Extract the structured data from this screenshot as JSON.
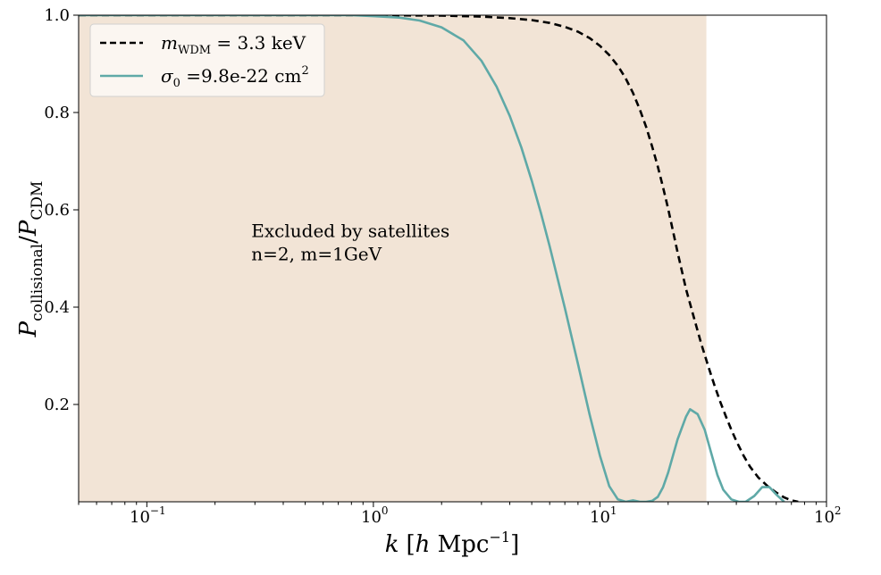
{
  "chart_data": {
    "type": "line",
    "xlabel": "k [h Mpc^-1]",
    "ylabel": "P_collisional / P_CDM",
    "xscale": "log",
    "xlim": [
      0.05,
      100
    ],
    "ylim": [
      0,
      1.0
    ],
    "xticks": [
      {
        "value": 0.1,
        "label": "10^-1"
      },
      {
        "value": 1,
        "label": "10^0"
      },
      {
        "value": 10,
        "label": "10^1"
      },
      {
        "value": 100,
        "label": "10^2"
      }
    ],
    "yticks": [
      {
        "value": 0.2,
        "label": "0.2"
      },
      {
        "value": 0.4,
        "label": "0.4"
      },
      {
        "value": 0.6,
        "label": "0.6"
      },
      {
        "value": 0.8,
        "label": "0.8"
      },
      {
        "value": 1.0,
        "label": "1.0"
      }
    ],
    "grid": false,
    "legend_position": "top-left",
    "excluded_region": {
      "x_range": [
        0.05,
        29.5
      ],
      "y_range": [
        0,
        1.0
      ],
      "color": "#f2e4d6",
      "label_lines": [
        "Excluded by satellites",
        "n=2, m=1GeV"
      ],
      "label_anchor": {
        "x": 0.3,
        "y": 0.55
      }
    },
    "series": [
      {
        "name": "m_WDM = 3.3 keV",
        "style": "dashed",
        "color": "#000000",
        "x": [
          0.05,
          1,
          2,
          3,
          4,
          5,
          6,
          7,
          8,
          9,
          10,
          11,
          12,
          13,
          14,
          15,
          16,
          17,
          18,
          19,
          20,
          22,
          24,
          26,
          28,
          30,
          32,
          34,
          36,
          38,
          40,
          43,
          46,
          50,
          55,
          60,
          65,
          70,
          75
        ],
        "y": [
          1.0,
          1.0,
          0.999,
          0.997,
          0.994,
          0.99,
          0.984,
          0.976,
          0.966,
          0.953,
          0.937,
          0.918,
          0.896,
          0.87,
          0.84,
          0.806,
          0.77,
          0.73,
          0.689,
          0.646,
          0.602,
          0.513,
          0.437,
          0.378,
          0.325,
          0.28,
          0.24,
          0.205,
          0.175,
          0.148,
          0.125,
          0.095,
          0.072,
          0.05,
          0.032,
          0.019,
          0.009,
          0.003,
          0.0
        ]
      },
      {
        "name": "sigma_0 = 9.8e-22 cm^2",
        "style": "solid",
        "color": "#5fa9a7",
        "x": [
          0.05,
          0.8,
          1.0,
          1.3,
          1.6,
          2.0,
          2.5,
          3.0,
          3.5,
          4.0,
          4.5,
          5.0,
          5.5,
          6.0,
          7.0,
          8.0,
          9.0,
          10.0,
          11.0,
          12.0,
          13.0,
          14.0,
          15.0,
          16.0,
          17.0,
          18.0,
          19.0,
          20.0,
          22.0,
          24.0,
          25.0,
          27.0,
          29.0,
          31.0,
          33.0,
          35.0,
          38.0,
          41.0,
          44.0,
          48.0,
          52.0,
          56.0,
          60.0,
          65.0
        ],
        "y": [
          1.0,
          1.0,
          0.998,
          0.995,
          0.989,
          0.975,
          0.948,
          0.906,
          0.853,
          0.793,
          0.728,
          0.66,
          0.592,
          0.525,
          0.398,
          0.283,
          0.18,
          0.095,
          0.032,
          0.005,
          0.0,
          0.003,
          0.0,
          0.0,
          0.002,
          0.01,
          0.03,
          0.06,
          0.128,
          0.175,
          0.19,
          0.18,
          0.148,
          0.1,
          0.055,
          0.025,
          0.005,
          0.0,
          0.0,
          0.012,
          0.03,
          0.03,
          0.015,
          0.0
        ]
      }
    ]
  },
  "legend": {
    "items": [
      {
        "prefix": "m",
        "sub": "WDM",
        "rest": " = 3.3 keV"
      },
      {
        "prefix": "σ",
        "sub": "0",
        "rest": " =9.8e-22 cm",
        "sup": "2"
      }
    ]
  },
  "axis_text": {
    "x_k": "k",
    "x_open": "[",
    "x_h": "h",
    "x_unit": " Mpc",
    "x_sup": "−1",
    "x_close": "]",
    "y_p1": "P",
    "y_sub1": "collisional",
    "y_slash": "/",
    "y_p2": "P",
    "y_sub2": "CDM",
    "tick_base": "10",
    "tick_sup_m1": "−1",
    "tick_sup_0": "0",
    "tick_sup_1": "1",
    "tick_sup_2": "2"
  }
}
